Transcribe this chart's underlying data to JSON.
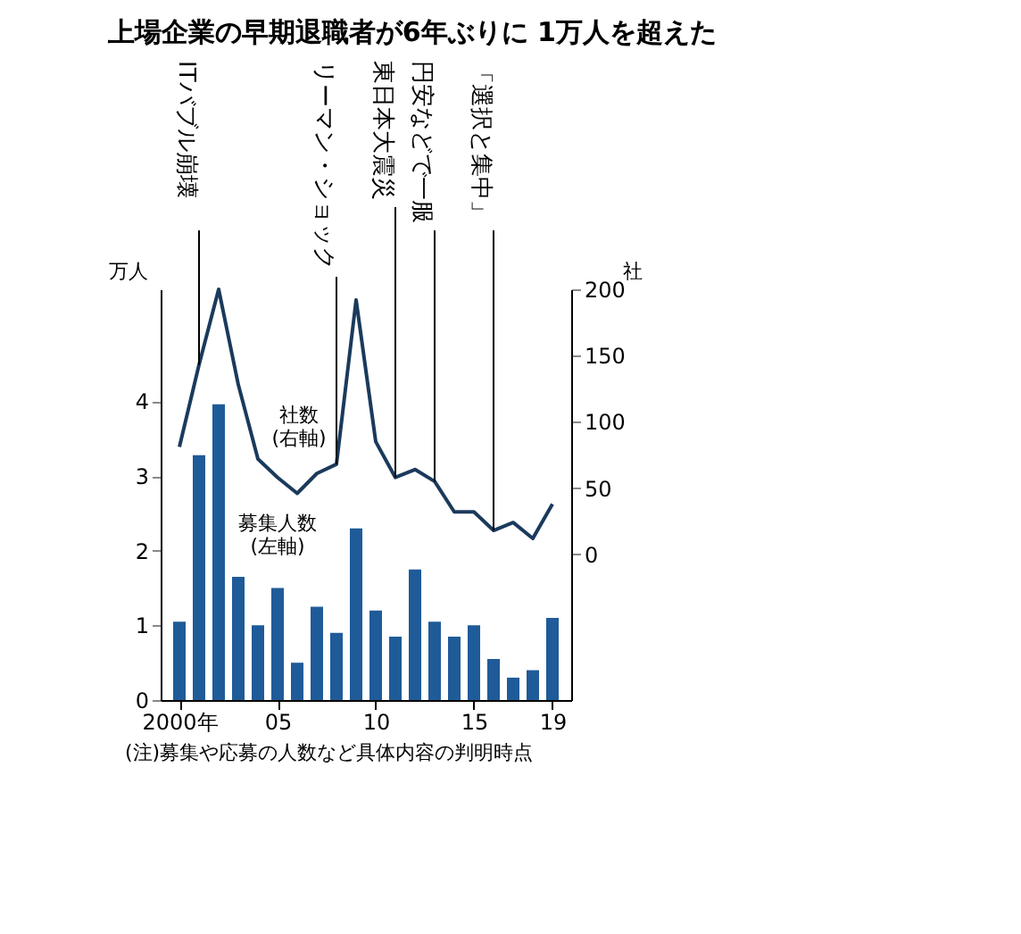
{
  "chart_data": {
    "type": "bar",
    "title": "上場企業の早期退職者が6年ぶりに\n1万人を超えた",
    "ylabel": "万人",
    "y2label": "社",
    "x": [
      2000,
      2001,
      2002,
      2003,
      2004,
      2005,
      2006,
      2007,
      2008,
      2009,
      2010,
      2011,
      2012,
      2013,
      2014,
      2015,
      2016,
      2017,
      2018,
      2019
    ],
    "xlim": [
      1999.5,
      2019.5
    ],
    "xticks": [
      {
        "value": 2000,
        "label": "2000年"
      },
      {
        "value": 2005,
        "label": "05"
      },
      {
        "value": 2010,
        "label": "10"
      },
      {
        "value": 2015,
        "label": "15"
      },
      {
        "value": 2019,
        "label": "19"
      }
    ],
    "ylim": [
      0,
      5.5
    ],
    "yticks": [
      0,
      1,
      2,
      3,
      4
    ],
    "y2lim": [
      -110,
      200
    ],
    "y2ticks": [
      0,
      50,
      100,
      150,
      200
    ],
    "series": [
      {
        "name": "募集人数\n(左軸)",
        "color": "#1f5b98",
        "values": [
          1.05,
          3.28,
          3.96,
          1.65,
          1.0,
          1.5,
          0.5,
          1.25,
          0.9,
          2.3,
          1.2,
          0.85,
          1.75,
          1.05,
          0.85,
          1.0,
          0.55,
          0.3,
          0.4,
          1.1
        ]
      },
      {
        "name": "社数\n(右軸)",
        "type": "line",
        "axis": "y2",
        "color": "#1b3a5c",
        "values": [
          81,
          143,
          200,
          128,
          72,
          58,
          46,
          61,
          68,
          192,
          85,
          58,
          64,
          55,
          32,
          32,
          18,
          24,
          12,
          38
        ]
      }
    ],
    "ref_lines": [
      {
        "axis": "x",
        "value": 2001,
        "label": "ITバブル崩壊",
        "color": "#000000"
      },
      {
        "axis": "x",
        "value": 2008,
        "label": "リーマン・ショック",
        "color": "#000000"
      },
      {
        "axis": "x",
        "value": 2011,
        "label": "東日本大震災",
        "color": "#000000"
      },
      {
        "axis": "x",
        "value": 2013,
        "label": "円安などで一服",
        "color": "#000000"
      },
      {
        "axis": "x",
        "value": 2016,
        "label": "「選択と集中」",
        "color": "#000000"
      }
    ],
    "annotations": [
      "(注)募集や応募の人数など具体内容の判明時点"
    ],
    "grid": false,
    "marker": "none",
    "line_style": "solid"
  }
}
